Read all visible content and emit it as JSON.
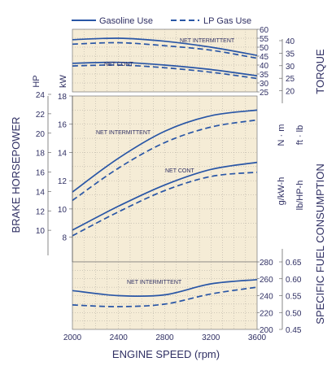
{
  "chart_data": [
    {
      "type": "line",
      "panel": "torque",
      "legend": [
        "Gasoline Use",
        "LP Gas Use"
      ],
      "x": [
        2000,
        2400,
        2800,
        3200,
        3600
      ],
      "xlim": [
        2000,
        3600
      ],
      "xlabel": "ENGINE SPEED (rpm)",
      "xticks": [
        "2000",
        "2400",
        "2800",
        "3200",
        "3600"
      ],
      "ylabel": "TORQUE",
      "ylim_nm": [
        25,
        60
      ],
      "yticks_nm": [
        "25",
        "30",
        "35",
        "40",
        "45",
        "50",
        "55",
        "60"
      ],
      "unit_nm": "N · m",
      "yticks_ftlb": [
        "20",
        "25",
        "30",
        "35",
        "40"
      ],
      "unit_ftlb": "ft · lb",
      "annotations": [
        "NET INTERMITTENT",
        "NET CONT"
      ],
      "series": [
        {
          "name": "Gasoline Use",
          "rating": "NET INTERMITTENT",
          "values": [
            54.2,
            55.0,
            53.3,
            50.0,
            45.4
          ]
        },
        {
          "name": "LP Gas Use",
          "rating": "NET INTERMITTENT",
          "values": [
            51.7,
            52.5,
            50.8,
            48.3,
            43.8
          ]
        },
        {
          "name": "Gasoline Use",
          "rating": "NET CONT",
          "values": [
            41.0,
            41.5,
            40.0,
            37.5,
            34.0
          ]
        },
        {
          "name": "LP Gas Use",
          "rating": "NET CONT",
          "values": [
            39.5,
            40.0,
            38.5,
            36.0,
            32.5
          ]
        }
      ]
    },
    {
      "type": "line",
      "panel": "brake_horsepower",
      "legend": [
        "Gasoline Use",
        "LP Gas Use"
      ],
      "x": [
        2000,
        2400,
        2800,
        3200,
        3600
      ],
      "xlim": [
        2000,
        3600
      ],
      "ylabel": "BRAKE HORSEPOWER",
      "ylim_kw": [
        7,
        18
      ],
      "yticks_kw": [
        "8",
        "10",
        "12",
        "14",
        "16",
        "18"
      ],
      "unit_kw": "kW",
      "yticks_hp": [
        "10",
        "12",
        "14",
        "16",
        "18",
        "20",
        "22",
        "24"
      ],
      "unit_hp": "HP",
      "annotations": [
        "NET INTERMITTENT",
        "NET CONT"
      ],
      "series": [
        {
          "name": "Gasoline Use",
          "rating": "NET INTERMITTENT",
          "values": [
            11.2,
            13.6,
            15.5,
            16.6,
            17.0
          ]
        },
        {
          "name": "LP Gas Use",
          "rating": "NET INTERMITTENT",
          "values": [
            10.6,
            12.9,
            14.7,
            15.8,
            16.3
          ]
        },
        {
          "name": "Gasoline Use",
          "rating": "NET CONT",
          "values": [
            8.5,
            10.2,
            11.7,
            12.8,
            13.3
          ]
        },
        {
          "name": "LP Gas Use",
          "rating": "NET CONT",
          "values": [
            8.1,
            9.8,
            11.3,
            12.3,
            12.6
          ]
        }
      ]
    },
    {
      "type": "line",
      "panel": "specific_fuel_consumption",
      "legend": [
        "Gasoline Use",
        "LP Gas Use"
      ],
      "x": [
        2000,
        2400,
        2800,
        3200,
        3600
      ],
      "xlim": [
        2000,
        3600
      ],
      "ylabel": "SPECIFIC FUEL CONSUMPTION",
      "ylim_g": [
        200,
        280
      ],
      "yticks_g": [
        "200",
        "220",
        "240",
        "260",
        "280"
      ],
      "unit_g": "g/kW-h",
      "yticks_lb": [
        "0.45",
        "0.50",
        "0.55",
        "0.60",
        "0.65"
      ],
      "unit_lb": "lb/HP-h",
      "annotations": [
        "NET INTERMITTENT"
      ],
      "series": [
        {
          "name": "Gasoline Use",
          "rating": "NET INTERMITTENT",
          "values": [
            246,
            240,
            241,
            254,
            259
          ]
        },
        {
          "name": "LP Gas Use",
          "rating": "NET INTERMITTENT",
          "values": [
            229,
            227,
            230,
            242,
            250
          ]
        }
      ]
    }
  ]
}
